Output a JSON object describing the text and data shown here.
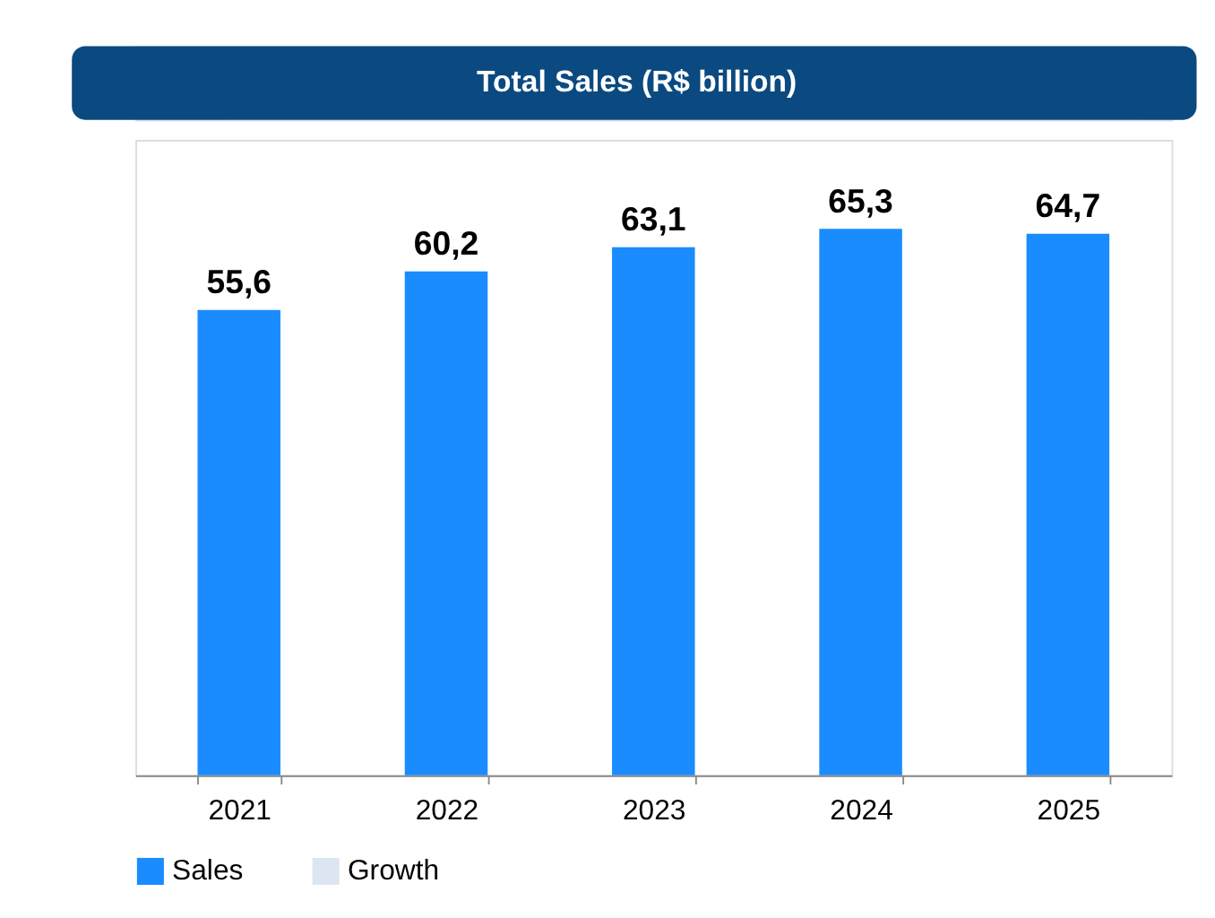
{
  "chart_data": {
    "type": "bar",
    "title": "Total Sales (R$ billion)",
    "categories": [
      "2021",
      "2022",
      "2023",
      "2024",
      "2025"
    ],
    "series": [
      {
        "name": "Sales",
        "color": "#1a8cff",
        "values": [
          55.6,
          60.2,
          63.1,
          65.3,
          64.7
        ],
        "value_labels": [
          "55,6",
          "60,2",
          "63,1",
          "65,3",
          "64,7"
        ]
      },
      {
        "name": "Growth",
        "color": "#dce6f2",
        "values": [
          null,
          null,
          null,
          null,
          null
        ]
      }
    ],
    "legend": "bottom",
    "grid": false
  }
}
